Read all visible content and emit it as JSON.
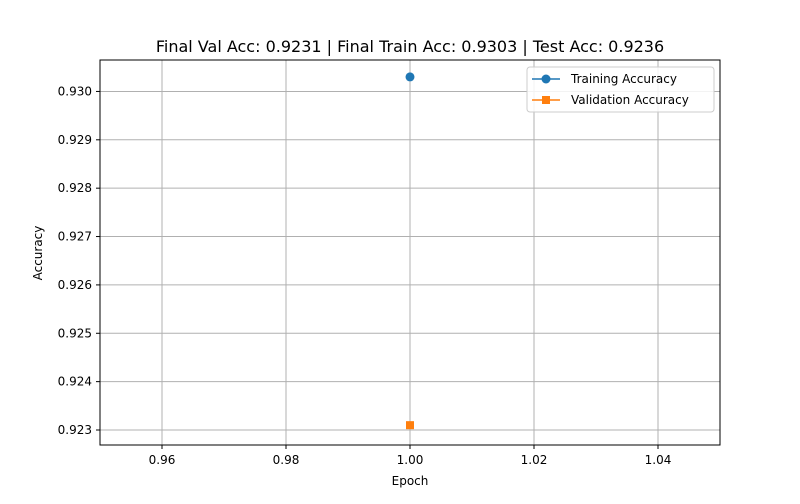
{
  "chart_data": {
    "type": "line",
    "title": "Final Val Acc: 0.9231 | Final Train Acc: 0.9303 | Test Acc: 0.9236",
    "xlabel": "Epoch",
    "ylabel": "Accuracy",
    "xlim": [
      0.95,
      1.05
    ],
    "ylim": [
      0.92269,
      0.93065
    ],
    "x_ticks": [
      0.96,
      0.98,
      1.0,
      1.02,
      1.04
    ],
    "x_tick_labels": [
      "0.96",
      "0.98",
      "1.00",
      "1.02",
      "1.04"
    ],
    "y_ticks": [
      0.923,
      0.924,
      0.925,
      0.926,
      0.927,
      0.928,
      0.929,
      0.93
    ],
    "y_tick_labels": [
      "0.923",
      "0.924",
      "0.925",
      "0.926",
      "0.927",
      "0.928",
      "0.929",
      "0.930"
    ],
    "grid": true,
    "legend_position": "top-right",
    "series": [
      {
        "name": "Training Accuracy",
        "marker": "circle",
        "color": "#1f77b4",
        "x": [
          1.0
        ],
        "y": [
          0.9303
        ]
      },
      {
        "name": "Validation Accuracy",
        "marker": "square",
        "color": "#ff7f0e",
        "x": [
          1.0
        ],
        "y": [
          0.9231
        ]
      }
    ]
  }
}
